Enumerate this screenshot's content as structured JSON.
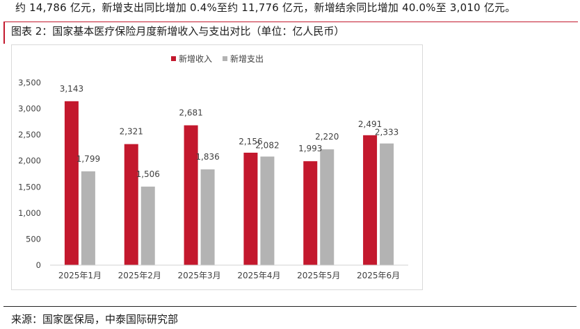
{
  "header": {
    "intro_text": "约 14,786 亿元，新增支出同比增加 0.4%至约 11,776 亿元，新增结余同比增加 40.0%至 3,010 亿元。"
  },
  "figure": {
    "caption": "图表 2：国家基本医疗保险月度新增收入与支出对比（单位：亿人民币）",
    "source": "来源：国家医保局，中泰国际研究部"
  },
  "colors": {
    "income": "#c3182d",
    "expense": "#b3b3b3"
  },
  "chart_data": {
    "type": "bar",
    "categories": [
      "2025年1月",
      "2025年2月",
      "2025年3月",
      "2025年4月",
      "2025年5月",
      "2025年6月"
    ],
    "series": [
      {
        "name": "新增收入",
        "values": [
          3143,
          2321,
          2681,
          2156,
          1993,
          2491
        ]
      },
      {
        "name": "新增支出",
        "values": [
          1799,
          1506,
          1836,
          2082,
          2220,
          2333
        ]
      }
    ],
    "data_labels": {
      "income": [
        "3,143",
        "2,321",
        "2,681",
        "2,156",
        "1,993",
        "2,491"
      ],
      "expense": [
        "1,799",
        "1,506",
        "1,836",
        "2,082",
        "2,220",
        "2,333"
      ]
    },
    "ylim": [
      0,
      3500
    ],
    "yticks": [
      0,
      500,
      1000,
      1500,
      2000,
      2500,
      3000,
      3500
    ],
    "ytick_labels": [
      "0",
      "500",
      "1,000",
      "1,500",
      "2,000",
      "2,500",
      "3,000",
      "3,500"
    ],
    "legend_position": "top-left",
    "grid": false
  }
}
